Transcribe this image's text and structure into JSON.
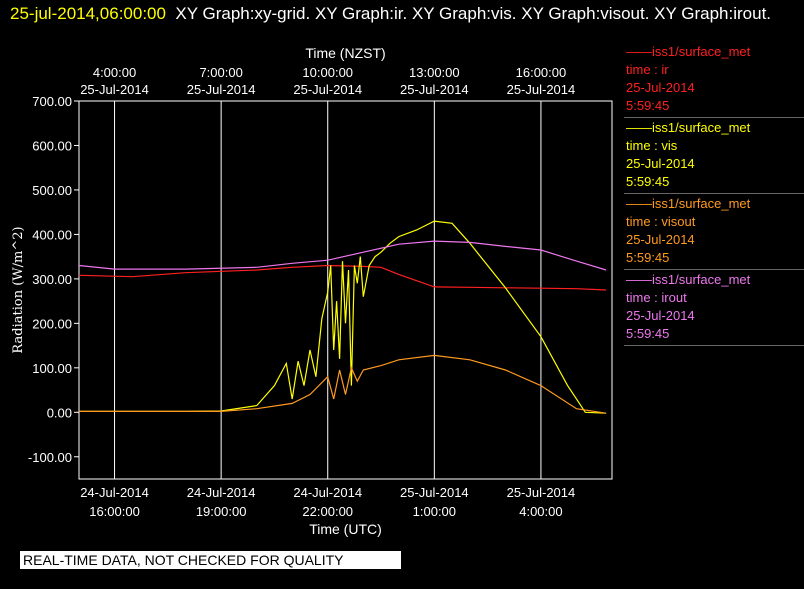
{
  "header": {
    "timestamp": "25-jul-2014,06:00:00",
    "graphs": "XY Graph:xy-grid.  XY Graph:ir.  XY Graph:vis.  XY Graph:visout.  XY Graph:irout."
  },
  "warning": "REAL-TIME DATA, NOT CHECKED FOR QUALITY",
  "colors": {
    "ir": "#ff2020",
    "vis": "#ffff00",
    "visout": "#ff9a20",
    "irout": "#ee77ee"
  },
  "legend": [
    {
      "line": "——iss1/surface_met",
      "var": "time : ir",
      "date": "25-Jul-2014",
      "time": "5:59:45",
      "color": "#ff2020"
    },
    {
      "line": "——iss1/surface_met",
      "var": "time : vis",
      "date": "25-Jul-2014",
      "time": "5:59:45",
      "color": "#ffff00"
    },
    {
      "line": "——iss1/surface_met",
      "var": "time : visout",
      "date": "25-Jul-2014",
      "time": "5:59:45",
      "color": "#ff9a20"
    },
    {
      "line": "——iss1/surface_met",
      "var": "time : irout",
      "date": "25-Jul-2014",
      "time": "5:59:45",
      "color": "#ee77ee"
    }
  ],
  "chart_data": {
    "type": "line",
    "xlabel": "Time (UTC)",
    "x2label": "Time (NZST)",
    "ylabel": "Radiation (W/m^2)",
    "xlim": [
      "2014-07-24 15:00",
      "2014-07-25 06:00"
    ],
    "ylim": [
      -150,
      700
    ],
    "grid": true,
    "yticks": [
      "-100.00",
      "0.00",
      "100.00",
      "200.00",
      "300.00",
      "400.00",
      "500.00",
      "600.00",
      "700.00"
    ],
    "ytick_values": [
      -100,
      0,
      100,
      200,
      300,
      400,
      500,
      600,
      700
    ],
    "xticks_bottom": [
      {
        "t": "2014-07-24 16:00",
        "date": "24-Jul-2014",
        "time": "16:00:00"
      },
      {
        "t": "2014-07-24 19:00",
        "date": "24-Jul-2014",
        "time": "19:00:00"
      },
      {
        "t": "2014-07-24 22:00",
        "date": "24-Jul-2014",
        "time": "22:00:00"
      },
      {
        "t": "2014-07-25 01:00",
        "date": "25-Jul-2014",
        "time": "1:00:00"
      },
      {
        "t": "2014-07-25 04:00",
        "date": "25-Jul-2014",
        "time": "4:00:00"
      }
    ],
    "xticks_top": [
      {
        "t": "2014-07-24 16:00",
        "time": "4:00:00",
        "date": "25-Jul-2014"
      },
      {
        "t": "2014-07-24 19:00",
        "time": "7:00:00",
        "date": "25-Jul-2014"
      },
      {
        "t": "2014-07-24 22:00",
        "time": "10:00:00",
        "date": "25-Jul-2014"
      },
      {
        "t": "2014-07-25 01:00",
        "time": "13:00:00",
        "date": "25-Jul-2014"
      },
      {
        "t": "2014-07-25 04:00",
        "time": "16:00:00",
        "date": "25-Jul-2014"
      }
    ],
    "series": [
      {
        "name": "time : ir",
        "color": "#ff2020",
        "x": [
          "2014-07-24 15:00",
          "2014-07-24 16:30",
          "2014-07-24 18:00",
          "2014-07-24 20:00",
          "2014-07-24 21:00",
          "2014-07-24 22:00",
          "2014-07-24 23:00",
          "2014-07-24 23:30",
          "2014-07-25 00:00",
          "2014-07-25 01:00",
          "2014-07-25 02:00",
          "2014-07-25 03:00",
          "2014-07-25 04:00",
          "2014-07-25 05:00",
          "2014-07-25 05:50"
        ],
        "y": [
          308,
          305,
          314,
          320,
          326,
          330,
          328,
          326,
          310,
          282,
          281,
          280,
          279,
          278,
          275
        ]
      },
      {
        "name": "time : vis",
        "color": "#ffff00",
        "x": [
          "2014-07-24 15:00",
          "2014-07-24 18:00",
          "2014-07-24 19:00",
          "2014-07-24 20:00",
          "2014-07-24 20:30",
          "2014-07-24 20:50",
          "2014-07-24 21:00",
          "2014-07-24 21:10",
          "2014-07-24 21:20",
          "2014-07-24 21:30",
          "2014-07-24 21:40",
          "2014-07-24 21:50",
          "2014-07-24 22:00",
          "2014-07-24 22:05",
          "2014-07-24 22:10",
          "2014-07-24 22:15",
          "2014-07-24 22:20",
          "2014-07-24 22:25",
          "2014-07-24 22:30",
          "2014-07-24 22:35",
          "2014-07-24 22:40",
          "2014-07-24 22:45",
          "2014-07-24 22:50",
          "2014-07-24 22:55",
          "2014-07-24 23:00",
          "2014-07-24 23:10",
          "2014-07-24 23:20",
          "2014-07-24 23:30",
          "2014-07-24 23:45",
          "2014-07-25 00:00",
          "2014-07-25 00:30",
          "2014-07-25 01:00",
          "2014-07-25 01:30",
          "2014-07-25 02:00",
          "2014-07-25 03:00",
          "2014-07-25 04:00",
          "2014-07-25 04:45",
          "2014-07-25 05:15",
          "2014-07-25 05:50"
        ],
        "y": [
          2,
          2,
          3,
          15,
          60,
          110,
          30,
          115,
          60,
          140,
          80,
          210,
          270,
          330,
          140,
          250,
          120,
          340,
          200,
          320,
          60,
          330,
          290,
          350,
          260,
          330,
          350,
          360,
          380,
          395,
          410,
          430,
          425,
          380,
          280,
          170,
          60,
          0,
          -2
        ]
      },
      {
        "name": "time : visout",
        "color": "#ff9a20",
        "x": [
          "2014-07-24 15:00",
          "2014-07-24 18:00",
          "2014-07-24 19:00",
          "2014-07-24 20:00",
          "2014-07-24 21:00",
          "2014-07-24 21:30",
          "2014-07-24 22:00",
          "2014-07-24 22:10",
          "2014-07-24 22:20",
          "2014-07-24 22:30",
          "2014-07-24 22:40",
          "2014-07-24 22:50",
          "2014-07-24 23:00",
          "2014-07-24 23:30",
          "2014-07-25 00:00",
          "2014-07-25 01:00",
          "2014-07-25 02:00",
          "2014-07-25 03:00",
          "2014-07-25 04:00",
          "2014-07-25 05:00",
          "2014-07-25 05:50"
        ],
        "y": [
          2,
          2,
          2,
          8,
          20,
          40,
          80,
          30,
          95,
          40,
          100,
          70,
          95,
          105,
          118,
          128,
          118,
          95,
          60,
          8,
          -2
        ]
      },
      {
        "name": "time : irout",
        "color": "#ee77ee",
        "x": [
          "2014-07-24 15:00",
          "2014-07-24 16:00",
          "2014-07-24 18:00",
          "2014-07-24 20:00",
          "2014-07-24 21:00",
          "2014-07-24 22:00",
          "2014-07-24 23:00",
          "2014-07-25 00:00",
          "2014-07-25 01:00",
          "2014-07-25 02:00",
          "2014-07-25 03:00",
          "2014-07-25 04:00",
          "2014-07-25 05:00",
          "2014-07-25 05:50"
        ],
        "y": [
          330,
          322,
          322,
          326,
          335,
          342,
          360,
          378,
          385,
          382,
          373,
          365,
          340,
          320
        ]
      }
    ]
  }
}
